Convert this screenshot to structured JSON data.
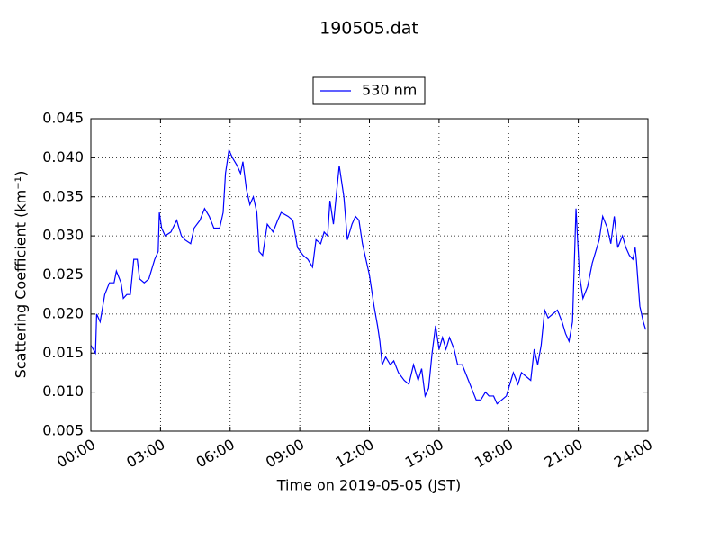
{
  "chart_data": {
    "type": "line",
    "title": "190505.dat",
    "x_label": "Time on 2019-05-05 (JST)",
    "y_label": "Scattering Coefficient (km⁻¹)",
    "xlim": [
      0,
      24
    ],
    "xticks": [
      {
        "value": 0,
        "label": "00:00"
      },
      {
        "value": 3,
        "label": "03:00"
      },
      {
        "value": 6,
        "label": "06:00"
      },
      {
        "value": 9,
        "label": "09:00"
      },
      {
        "value": 12,
        "label": "12:00"
      },
      {
        "value": 15,
        "label": "15:00"
      },
      {
        "value": 18,
        "label": "18:00"
      },
      {
        "value": 21,
        "label": "21:00"
      },
      {
        "value": 24,
        "label": "24:00"
      }
    ],
    "ylim": [
      0.005,
      0.045
    ],
    "yticks": [
      0.005,
      {
        "value": 0.01,
        "label": "0.010"
      },
      0.015,
      {
        "value": 0.02,
        "label": "0.020"
      },
      0.025,
      {
        "value": 0.03,
        "label": "0.030"
      },
      0.035,
      {
        "value": 0.04,
        "label": "0.040"
      },
      0.045
    ],
    "grid": true,
    "legend_position": "top",
    "x": [
      0,
      0.2,
      0.25,
      0.4,
      0.6,
      0.8,
      1.0,
      1.1,
      1.3,
      1.4,
      1.55,
      1.7,
      1.85,
      2.0,
      2.1,
      2.3,
      2.5,
      2.75,
      2.9,
      2.95,
      3.05,
      3.2,
      3.45,
      3.7,
      3.9,
      4.05,
      4.3,
      4.45,
      4.7,
      4.9,
      5.1,
      5.3,
      5.55,
      5.7,
      5.8,
      5.95,
      6.1,
      6.3,
      6.45,
      6.55,
      6.7,
      6.85,
      7.0,
      7.15,
      7.25,
      7.4,
      7.6,
      7.85,
      8.05,
      8.2,
      8.5,
      8.7,
      8.9,
      9.15,
      9.35,
      9.55,
      9.7,
      9.9,
      10.05,
      10.2,
      10.3,
      10.45,
      10.7,
      10.9,
      11.05,
      11.25,
      11.4,
      11.55,
      11.7,
      11.85,
      12.0,
      12.2,
      12.35,
      12.45,
      12.55,
      12.7,
      12.9,
      13.05,
      13.25,
      13.5,
      13.7,
      13.9,
      14.1,
      14.25,
      14.4,
      14.55,
      14.7,
      14.85,
      15.0,
      15.15,
      15.3,
      15.45,
      15.65,
      15.8,
      16.0,
      16.2,
      16.4,
      16.6,
      16.8,
      17.0,
      17.15,
      17.35,
      17.5,
      17.7,
      17.9,
      18.05,
      18.2,
      18.4,
      18.55,
      18.75,
      18.95,
      19.1,
      19.25,
      19.4,
      19.55,
      19.7,
      19.9,
      20.1,
      20.3,
      20.45,
      20.6,
      20.75,
      20.9,
      21.05,
      21.2,
      21.4,
      21.6,
      21.75,
      21.9,
      22.05,
      22.25,
      22.4,
      22.55,
      22.7,
      22.9,
      23.05,
      23.2,
      23.35,
      23.45,
      23.5,
      23.65,
      23.8,
      23.9
    ],
    "series": [
      {
        "name": "530 nm",
        "color": "#0000ff",
        "values": [
          0.016,
          0.015,
          0.02,
          0.019,
          0.0225,
          0.024,
          0.024,
          0.0255,
          0.024,
          0.022,
          0.0225,
          0.0225,
          0.027,
          0.027,
          0.0245,
          0.024,
          0.0245,
          0.027,
          0.028,
          0.033,
          0.031,
          0.03,
          0.0305,
          0.032,
          0.03,
          0.0295,
          0.029,
          0.031,
          0.032,
          0.0335,
          0.0325,
          0.031,
          0.031,
          0.033,
          0.038,
          0.041,
          0.04,
          0.039,
          0.038,
          0.0395,
          0.036,
          0.034,
          0.035,
          0.033,
          0.028,
          0.0275,
          0.0315,
          0.0305,
          0.032,
          0.033,
          0.0325,
          0.032,
          0.0285,
          0.0275,
          0.027,
          0.026,
          0.0295,
          0.029,
          0.0305,
          0.03,
          0.0345,
          0.0315,
          0.039,
          0.035,
          0.0295,
          0.0315,
          0.0325,
          0.032,
          0.029,
          0.027,
          0.025,
          0.021,
          0.0185,
          0.0165,
          0.0135,
          0.0145,
          0.0135,
          0.014,
          0.0125,
          0.0115,
          0.011,
          0.0135,
          0.0115,
          0.013,
          0.0095,
          0.0105,
          0.015,
          0.0185,
          0.0155,
          0.017,
          0.0155,
          0.017,
          0.0155,
          0.0135,
          0.0135,
          0.012,
          0.0105,
          0.009,
          0.009,
          0.01,
          0.0095,
          0.0095,
          0.0085,
          0.009,
          0.0095,
          0.011,
          0.0125,
          0.011,
          0.0125,
          0.012,
          0.0115,
          0.0155,
          0.0135,
          0.016,
          0.0205,
          0.0195,
          0.02,
          0.0205,
          0.019,
          0.0175,
          0.0165,
          0.019,
          0.0335,
          0.025,
          0.022,
          0.0235,
          0.0265,
          0.028,
          0.0295,
          0.0325,
          0.031,
          0.029,
          0.0325,
          0.0285,
          0.03,
          0.0285,
          0.0275,
          0.027,
          0.0285,
          0.027,
          0.021,
          0.019,
          0.018
        ]
      }
    ]
  }
}
